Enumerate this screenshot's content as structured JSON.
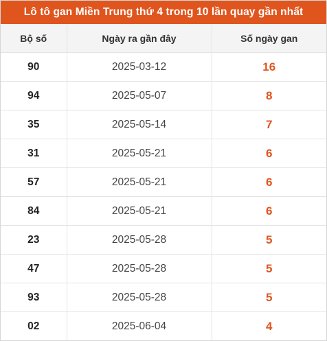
{
  "title": "Lô tô gan Miền Trung thứ 4 trong 10 lần quay gần nhất",
  "columns": [
    "Bộ số",
    "Ngày ra gần đây",
    "Số ngày gan"
  ],
  "rows": [
    {
      "number": "90",
      "date": "2025-03-12",
      "gan": "16"
    },
    {
      "number": "94",
      "date": "2025-05-07",
      "gan": "8"
    },
    {
      "number": "35",
      "date": "2025-05-14",
      "gan": "7"
    },
    {
      "number": "31",
      "date": "2025-05-21",
      "gan": "6"
    },
    {
      "number": "57",
      "date": "2025-05-21",
      "gan": "6"
    },
    {
      "number": "84",
      "date": "2025-05-21",
      "gan": "6"
    },
    {
      "number": "23",
      "date": "2025-05-28",
      "gan": "5"
    },
    {
      "number": "47",
      "date": "2025-05-28",
      "gan": "5"
    },
    {
      "number": "93",
      "date": "2025-05-28",
      "gan": "5"
    },
    {
      "number": "02",
      "date": "2025-06-04",
      "gan": "4"
    }
  ],
  "colors": {
    "accent": "#e0551e",
    "header_bg": "#f4f4f4"
  }
}
